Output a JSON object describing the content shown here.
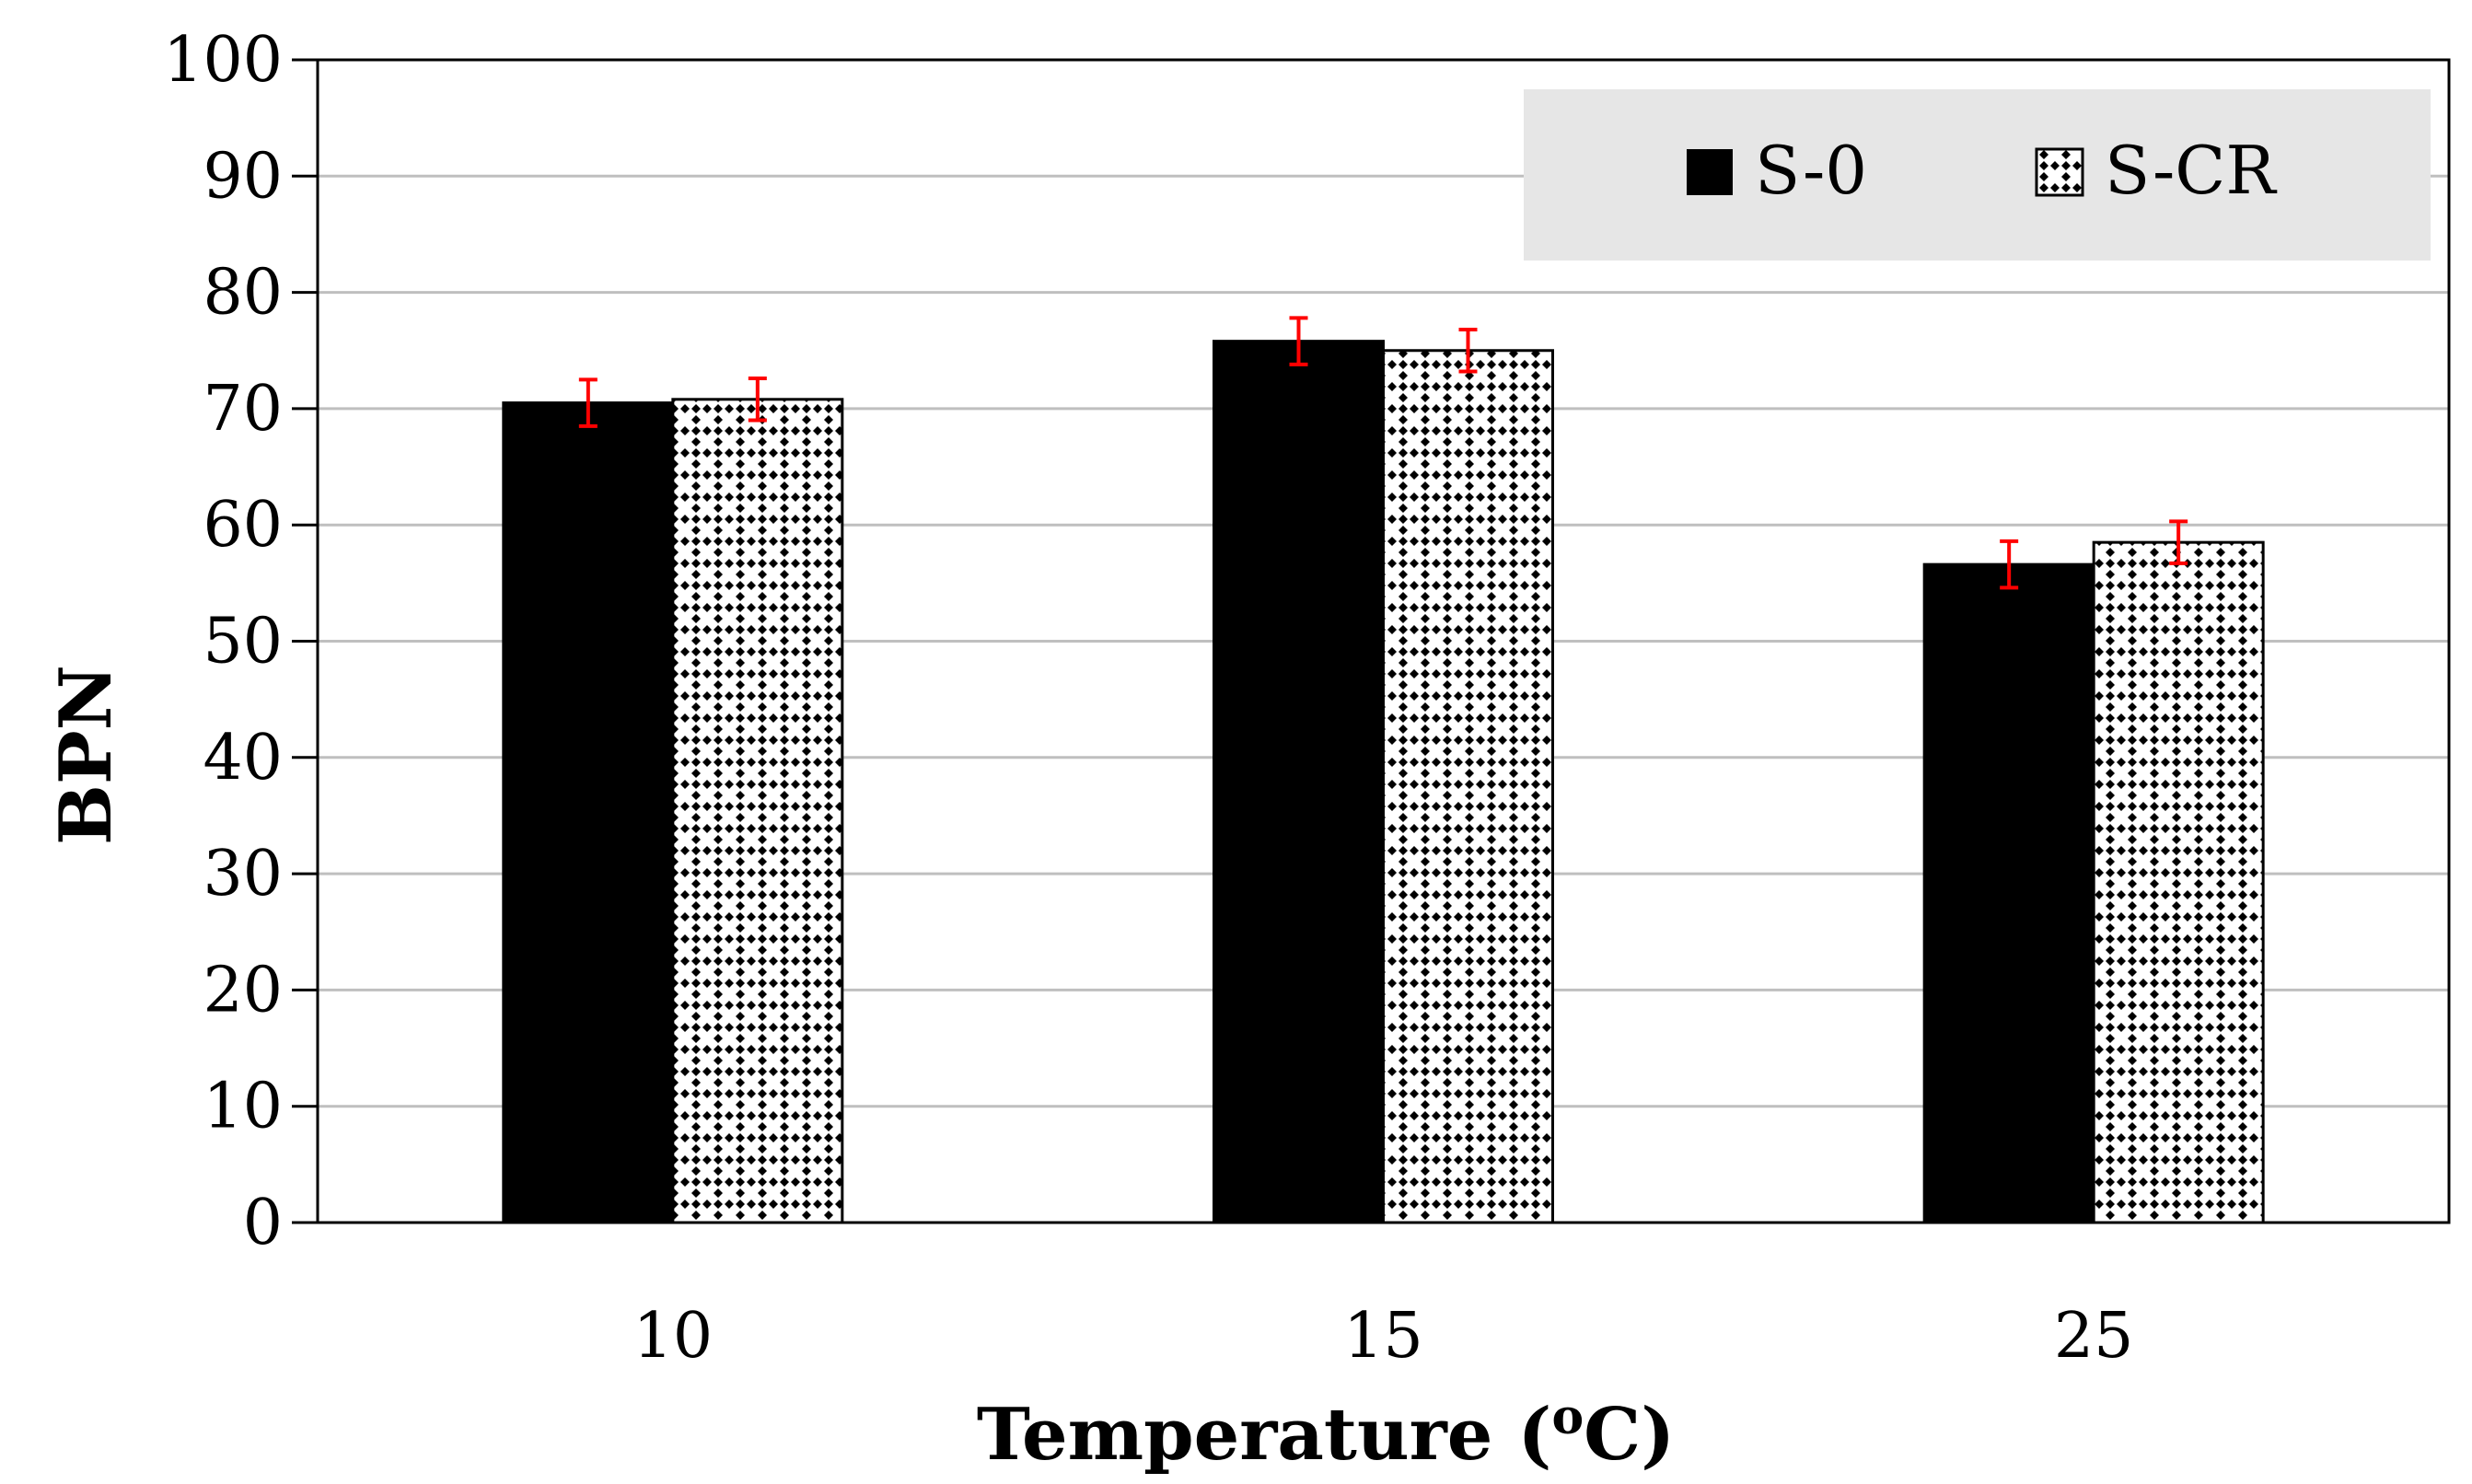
{
  "chart_data": {
    "type": "bar",
    "title": "",
    "xlabel": "Temperature (",
    "xlabel_superscript": "o",
    "xlabel_suffix": "C)",
    "ylabel": "BPN",
    "categories": [
      "10",
      "15",
      "25"
    ],
    "series": [
      {
        "name": "S-0",
        "values": [
          70.5,
          75.8,
          56.6
        ],
        "errors": [
          2.0,
          2.0,
          2.0
        ],
        "fill": "solid",
        "color": "#000000"
      },
      {
        "name": "S-CR",
        "values": [
          70.8,
          75.0,
          58.5
        ],
        "errors": [
          1.8,
          1.8,
          1.8
        ],
        "fill": "checker-pattern",
        "color": "#000000"
      }
    ],
    "ylim": [
      0,
      100
    ],
    "yticks": [
      "0",
      "10",
      "20",
      "30",
      "40",
      "50",
      "60",
      "70",
      "80",
      "90",
      "100"
    ],
    "grid": true,
    "legend_position": "top-right",
    "colors": {
      "grid": "#bfbfbf",
      "axis": "#000000",
      "error_bar": "#ff0000",
      "legend_background": "#e6e6e6"
    }
  }
}
